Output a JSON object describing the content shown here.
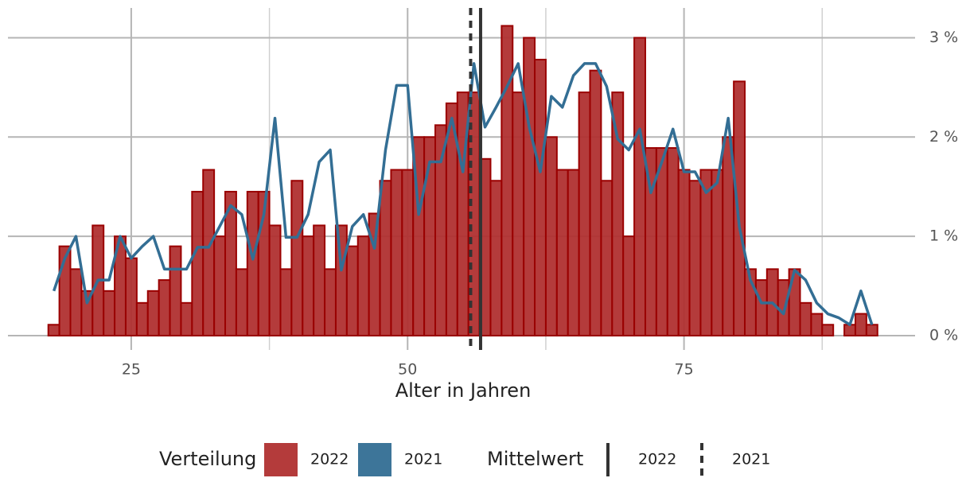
{
  "chart_data": {
    "type": "histogram",
    "x_label": "Alter in Jahren",
    "x": [
      18,
      19,
      20,
      21,
      22,
      23,
      24,
      25,
      26,
      27,
      28,
      29,
      30,
      31,
      32,
      33,
      34,
      35,
      36,
      37,
      38,
      39,
      40,
      41,
      42,
      43,
      44,
      45,
      46,
      47,
      48,
      49,
      50,
      51,
      52,
      53,
      54,
      55,
      56,
      57,
      58,
      59,
      60,
      61,
      62,
      63,
      64,
      65,
      66,
      67,
      68,
      69,
      70,
      71,
      72,
      73,
      74,
      75,
      76,
      77,
      78,
      79,
      80,
      81,
      82,
      83,
      84,
      85,
      86,
      87,
      88,
      89,
      90,
      91,
      92
    ],
    "series": [
      {
        "name": "2022",
        "type": "bar",
        "color": "#b03030",
        "edge_color": "#9a0000",
        "values": [
          0.11,
          0.9,
          0.67,
          0.45,
          1.11,
          0.45,
          1.0,
          0.78,
          0.33,
          0.45,
          0.56,
          0.9,
          0.33,
          1.45,
          1.67,
          1.0,
          1.45,
          0.67,
          1.45,
          1.45,
          1.11,
          0.67,
          1.56,
          1.0,
          1.11,
          0.67,
          1.11,
          0.9,
          1.0,
          1.23,
          1.56,
          1.67,
          1.67,
          2.0,
          2.0,
          2.12,
          2.34,
          2.45,
          2.45,
          1.78,
          1.56,
          3.12,
          2.45,
          3.0,
          2.78,
          2.0,
          1.67,
          1.67,
          2.45,
          2.67,
          1.56,
          2.45,
          1.0,
          3.0,
          1.89,
          1.89,
          1.89,
          1.67,
          1.56,
          1.67,
          1.67,
          2.0,
          2.56,
          0.67,
          0.56,
          0.67,
          0.56,
          0.67,
          0.33,
          0.22,
          0.11,
          0,
          0.11,
          0.22,
          0.11
        ]
      },
      {
        "name": "2021",
        "type": "line",
        "color": "#336e94",
        "values": [
          0.45,
          0.78,
          1.0,
          0.33,
          0.56,
          0.56,
          1.0,
          0.78,
          0.9,
          1.0,
          0.67,
          0.67,
          0.67,
          0.89,
          0.89,
          1.1,
          1.31,
          1.22,
          0.77,
          1.22,
          2.19,
          0.99,
          0.99,
          1.22,
          1.75,
          1.87,
          0.66,
          1.1,
          1.22,
          0.88,
          1.87,
          2.52,
          2.52,
          1.22,
          1.75,
          1.75,
          2.19,
          1.65,
          2.74,
          2.1,
          2.3,
          2.51,
          2.74,
          2.1,
          1.65,
          2.41,
          2.3,
          2.62,
          2.74,
          2.74,
          2.51,
          1.98,
          1.87,
          2.08,
          1.44,
          1.75,
          2.08,
          1.65,
          1.65,
          1.44,
          1.54,
          2.19,
          1.1,
          0.56,
          0.33,
          0.33,
          0.22,
          0.66,
          0.56,
          0.33,
          0.22,
          0.18,
          0.11,
          0.45,
          0.11
        ]
      }
    ],
    "means": [
      {
        "name": "2022",
        "value": 56.6,
        "style": "solid",
        "color": "#333333"
      },
      {
        "name": "2021",
        "value": 55.7,
        "style": "dashed",
        "color": "#333333"
      }
    ],
    "legend_titles": {
      "distribution": "Verteilung",
      "mean": "Mittelwert"
    },
    "xlim": [
      13.85,
      95.9
    ],
    "xticks": [
      25,
      50,
      75
    ],
    "xminorticks": [
      37.5,
      62.5,
      87.5
    ],
    "ylim": [
      -0.144,
      3.3
    ],
    "yticks": [
      {
        "value": 0,
        "label": "0 %"
      },
      {
        "value": 1,
        "label": "1 %"
      },
      {
        "value": 2,
        "label": "2 %"
      },
      {
        "value": 3,
        "label": "3 %"
      }
    ],
    "grid": true,
    "legend": "bottom"
  }
}
